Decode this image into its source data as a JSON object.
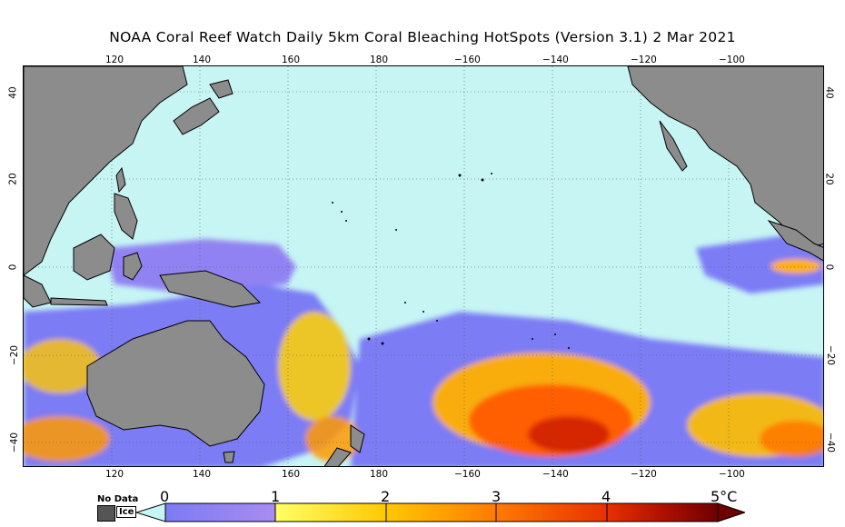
{
  "title": "NOAA Coral Reef Watch Daily 5km Coral Bleaching HotSpots (Version 3.1)  2 Mar 2021",
  "map": {
    "ocean_color": "#c6f5f4",
    "land_color": "#8c8c8c",
    "lon_ticks_top": [
      "120",
      "140",
      "160",
      "180",
      "−160",
      "−140",
      "−120",
      "−100"
    ],
    "lon_ticks_bottom": [
      "120",
      "140",
      "160",
      "180",
      "−160",
      "−140",
      "−120",
      "−100"
    ],
    "lat_ticks_left": [
      "40",
      "20",
      "0",
      "−20",
      "−40"
    ],
    "lat_ticks_right": [
      "40",
      "20",
      "0",
      "−20",
      "−40"
    ]
  },
  "legend": {
    "no_data_label": "No Data",
    "ice_label": "Ice",
    "colorbar_labels": [
      "0",
      "1",
      "2",
      "3",
      "4",
      "5°C"
    ],
    "colors": [
      "#7b7bf5",
      "#a98cf0",
      "#ffff66",
      "#ffc800",
      "#ff7a00",
      "#e83000",
      "#b01000",
      "#6e0000"
    ]
  }
}
